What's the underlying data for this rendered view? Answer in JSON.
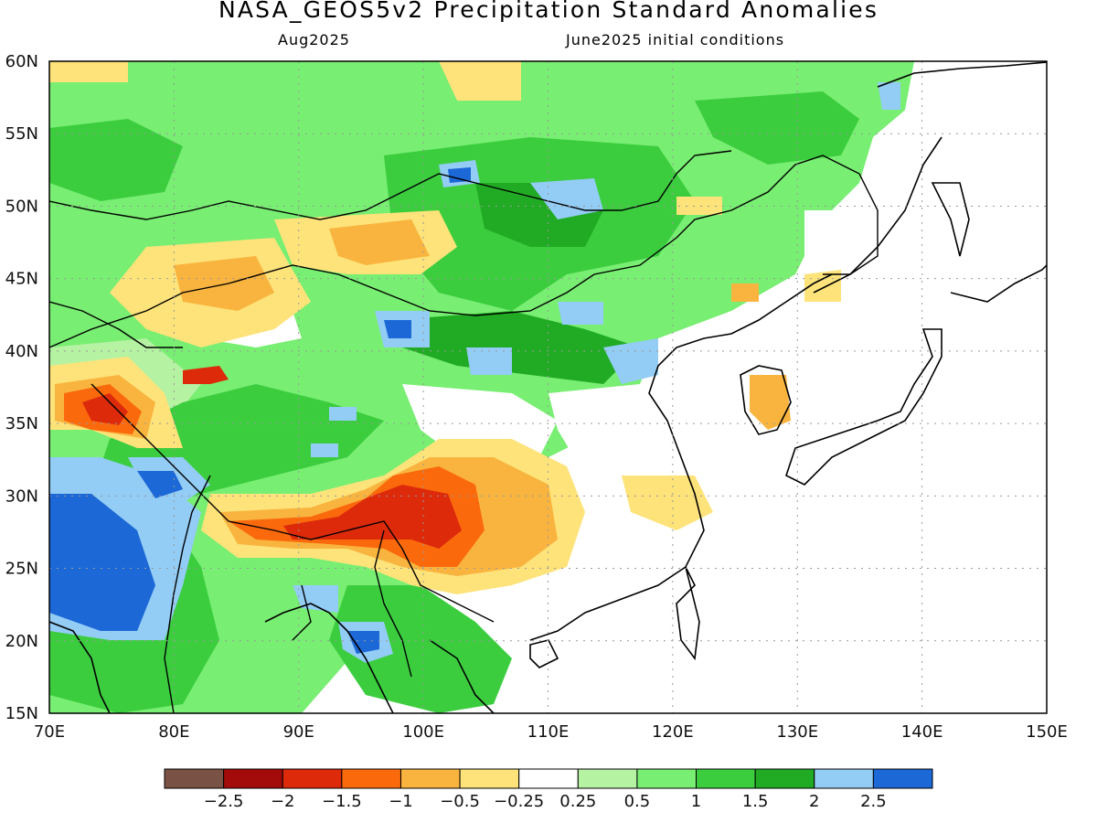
{
  "header": {
    "title": "NASA_GEOS5v2 Precipitation Standard Anomalies",
    "subtitle_left": "Aug2025",
    "subtitle_right": "June2025 initial conditions"
  },
  "map": {
    "lon_range": [
      70,
      150
    ],
    "lat_range": [
      15,
      60
    ],
    "lon_ticks": [
      {
        "value": 70,
        "label": "70E"
      },
      {
        "value": 80,
        "label": "80E"
      },
      {
        "value": 90,
        "label": "90E"
      },
      {
        "value": 100,
        "label": "100E"
      },
      {
        "value": 110,
        "label": "110E"
      },
      {
        "value": 120,
        "label": "120E"
      },
      {
        "value": 130,
        "label": "130E"
      },
      {
        "value": 140,
        "label": "140E"
      },
      {
        "value": 150,
        "label": "150E"
      }
    ],
    "lat_ticks": [
      {
        "value": 15,
        "label": "15N"
      },
      {
        "value": 20,
        "label": "20N"
      },
      {
        "value": 25,
        "label": "25N"
      },
      {
        "value": 30,
        "label": "30N"
      },
      {
        "value": 35,
        "label": "35N"
      },
      {
        "value": 40,
        "label": "40N"
      },
      {
        "value": 45,
        "label": "45N"
      },
      {
        "value": 50,
        "label": "50N"
      },
      {
        "value": 55,
        "label": "55N"
      },
      {
        "value": 60,
        "label": "60N"
      }
    ],
    "gridlines": "dotted",
    "anomaly_regions": [
      {
        "lon": [
          70,
          110
        ],
        "lat": [
          40,
          60
        ],
        "level": 1.0
      },
      {
        "lon": [
          110,
          142
        ],
        "lat": [
          42,
          60
        ],
        "level": 1.5
      },
      {
        "lon": [
          70,
          95
        ],
        "lat": [
          15,
          34
        ],
        "level": 1.5
      },
      {
        "lon": [
          72,
          80
        ],
        "lat": [
          20,
          30
        ],
        "level": 2.5
      },
      {
        "lon": [
          88,
          112
        ],
        "lat": [
          28,
          34
        ],
        "level": -1.0
      },
      {
        "lon": [
          94,
          102
        ],
        "lat": [
          25,
          31
        ],
        "level": -1.5
      },
      {
        "lon": [
          72,
          80
        ],
        "lat": [
          34,
          37
        ],
        "level": -1.5
      },
      {
        "lon": [
          85,
          97
        ],
        "lat": [
          26,
          29
        ],
        "level": -1.0
      },
      {
        "lon": [
          90,
          105
        ],
        "lat": [
          47,
          50
        ],
        "level": -0.5
      },
      {
        "lon": [
          115,
          125
        ],
        "lat": [
          20,
          40
        ],
        "level": 0.0
      },
      {
        "lon": [
          140,
          150
        ],
        "lat": [
          40,
          58
        ],
        "level": 0.0
      }
    ]
  },
  "legend": {
    "colors": [
      "#7a5145",
      "#a20b0a",
      "#dc2a0b",
      "#fa6a0d",
      "#f9b43f",
      "#fde37a",
      "#ffffff",
      "#b5f2a2",
      "#78ee72",
      "#3ccd3f",
      "#21ab24",
      "#93ccf5",
      "#1c68d6"
    ],
    "labels": [
      "−2.5",
      "−2",
      "−1.5",
      "−1",
      "−0.5",
      "−0.25",
      "0.25",
      "0.5",
      "1",
      "1.5",
      "2",
      "2.5"
    ]
  }
}
